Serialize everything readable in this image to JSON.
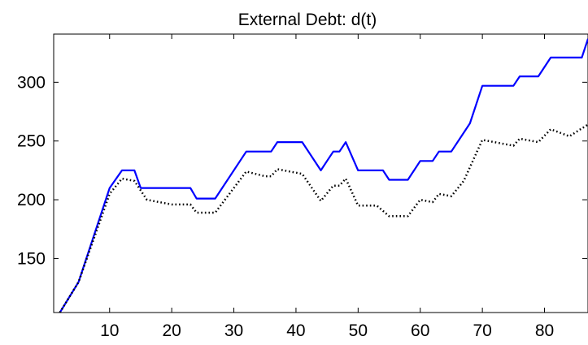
{
  "chart_data": {
    "type": "line",
    "title": "External Debt: d(t)",
    "xlabel": "",
    "ylabel": "",
    "xlim": [
      1,
      87
    ],
    "ylim": [
      104,
      341
    ],
    "grid": false,
    "xticks": [
      10,
      20,
      30,
      40,
      50,
      60,
      70,
      80
    ],
    "yticks": [
      150,
      200,
      250,
      300
    ],
    "series": [
      {
        "style": "solid",
        "color": "#0000ff",
        "x": [
          2,
          5,
          10,
          12,
          14,
          15,
          23,
          24,
          27,
          32,
          35,
          36,
          37,
          40,
          41,
          44,
          45,
          46,
          47,
          48,
          50,
          52,
          54,
          55,
          58,
          60,
          62,
          63,
          65,
          68,
          70,
          75,
          76,
          79,
          81,
          86,
          87
        ],
        "y": [
          104,
          130,
          210,
          225,
          225,
          210,
          210,
          201,
          201,
          241,
          241,
          241,
          249,
          249,
          249,
          225,
          233,
          241,
          241,
          249,
          225,
          225,
          225,
          217,
          217,
          233,
          233,
          241,
          241,
          265,
          297,
          297,
          305,
          305,
          321,
          321,
          337
        ]
      },
      {
        "style": "dotted",
        "color": "#000000",
        "x": [
          2,
          5,
          10,
          12,
          14,
          16,
          20,
          23,
          24,
          27,
          32,
          35,
          36,
          37,
          41,
          44,
          46,
          47,
          48,
          50,
          53,
          55,
          58,
          60,
          62,
          63,
          65,
          67,
          70,
          75,
          76,
          79,
          81,
          84,
          87
        ],
        "y": [
          104,
          130,
          205,
          218,
          216,
          200,
          196,
          196,
          189,
          189,
          224,
          220,
          220,
          226,
          222,
          199,
          212,
          212,
          218,
          195,
          195,
          186,
          186,
          200,
          198,
          205,
          203,
          216,
          251,
          246,
          252,
          249,
          260,
          254,
          264
        ]
      }
    ]
  }
}
